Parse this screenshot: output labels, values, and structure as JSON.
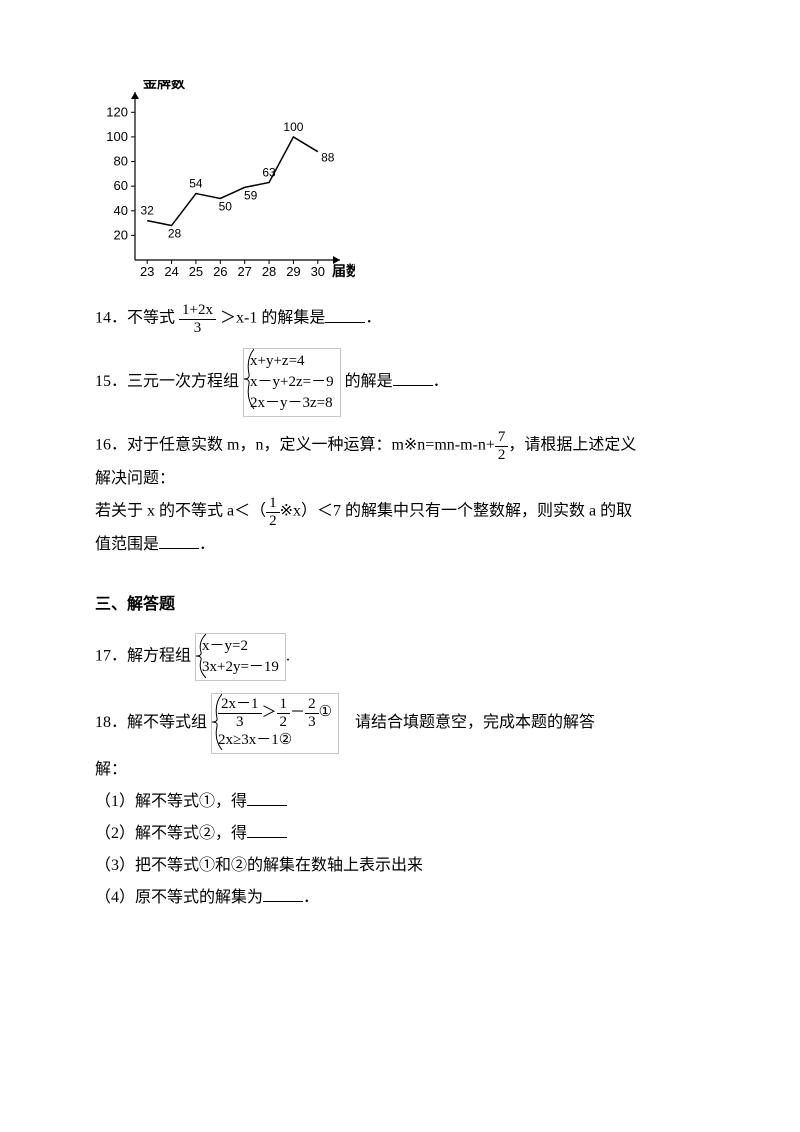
{
  "chart": {
    "type": "line",
    "y_label": "金牌数",
    "x_label": "届数",
    "y_ticks": [
      20,
      40,
      60,
      80,
      100,
      120
    ],
    "ylim": [
      0,
      130
    ],
    "x_ticks": [
      23,
      24,
      25,
      26,
      27,
      28,
      29,
      30
    ],
    "xlim": [
      22.5,
      30.5
    ],
    "values": [
      32,
      28,
      54,
      50,
      59,
      63,
      100,
      88
    ],
    "point_labels": [
      "32",
      "28",
      "54",
      "50",
      "59",
      "63",
      "100",
      "88"
    ],
    "line_color": "#000000",
    "line_width": 1.5,
    "axis_color": "#000000",
    "tick_fontsize": 13,
    "label_fontsize": 14,
    "background_color": "#ffffff"
  },
  "q14": {
    "prefix": "14．不等式",
    "frac_num": "1+2x",
    "frac_den": "3",
    "suffix": "＞x-1 的解集是",
    "end": "．"
  },
  "q15": {
    "prefix": "15．三元一次方程组",
    "sys": [
      "x+y+z=4",
      "x－y+2z=－9",
      "2x－y－3z=8"
    ],
    "suffix": "的解是",
    "end": "．"
  },
  "q16": {
    "line1a": "16．对于任意实数 m，n，定义一种运算：m※n=mn-m-n+",
    "frac_num": "7",
    "frac_den": "2",
    "line1b": "，请根据上述定义",
    "line2": "解决问题：",
    "line3a": "若关于 x 的不等式 a＜（",
    "frac2_num": "1",
    "frac2_den": "2",
    "line3b": "※x）＜7 的解集中只有一个整数解，则实数 a 的取",
    "line4": "值范围是",
    "line4_end": "．"
  },
  "section3": "三、解答题",
  "q17": {
    "prefix": "17．解方程组",
    "sys": [
      "x－y=2",
      "3x+2y=－19"
    ],
    "suffix": "."
  },
  "q18": {
    "prefix": "18．解不等式组",
    "sys_line1_num": "2x－1",
    "sys_line1_den": "3",
    "sys_line1_mid": "＞",
    "sys_line1_f2n": "1",
    "sys_line1_f2d": "2",
    "sys_line1_minus": "－",
    "sys_line1_f3n": "2",
    "sys_line1_f3d": "3",
    "sys_line1_tag": "①",
    "sys_line2": "2x≥3x－1",
    "sys_line2_tag": "②",
    "suffix": "请结合填题意空，完成本题的解答",
    "ans_label": "解：",
    "p1": "（1）解不等式①，得",
    "p2": "（2）解不等式②，得",
    "p3": "（3）把不等式①和②的解集在数轴上表示出来",
    "p4": "（4）原不等式的解集为",
    "end": "．"
  }
}
